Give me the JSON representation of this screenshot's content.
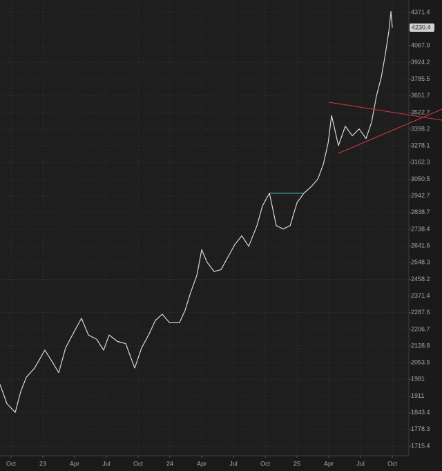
{
  "chart_data": {
    "type": "line",
    "color": "#d8d8d8",
    "log_scale": true,
    "grid": true,
    "x": [
      2022.663,
      2022.717,
      2022.783,
      2022.826,
      2022.87,
      2022.935,
      2023.016,
      2023.071,
      2023.125,
      2023.179,
      2023.25,
      2023.304,
      2023.359,
      2023.424,
      2023.478,
      2023.522,
      2023.587,
      2023.652,
      2023.723,
      2023.777,
      2023.832,
      2023.886,
      2023.94,
      2023.995,
      2024.076,
      2024.12,
      2024.158,
      2024.212,
      2024.25,
      2024.293,
      2024.348,
      2024.402,
      2024.457,
      2024.511,
      2024.565,
      2024.62,
      2024.685,
      2024.728,
      2024.783,
      2024.837,
      2024.891,
      2024.946,
      2025.0,
      2025.054,
      2025.109,
      2025.163,
      2025.207,
      2025.245,
      2025.272,
      2025.326,
      2025.38,
      2025.435,
      2025.489,
      2025.543,
      2025.587,
      2025.625,
      2025.663,
      2025.696,
      2025.723,
      2025.739,
      2025.75
    ],
    "values": [
      1960,
      1880,
      1845,
      1930,
      1990,
      2030,
      2110,
      2060,
      2010,
      2120,
      2200,
      2260,
      2180,
      2160,
      2110,
      2180,
      2150,
      2140,
      2030,
      2120,
      2180,
      2250,
      2280,
      2240,
      2240,
      2300,
      2380,
      2480,
      2620,
      2550,
      2500,
      2510,
      2580,
      2650,
      2700,
      2640,
      2760,
      2880,
      2960,
      2760,
      2740,
      2760,
      2900,
      2960,
      3000,
      3050,
      3150,
      3300,
      3500,
      3280,
      3420,
      3350,
      3400,
      3330,
      3450,
      3650,
      3800,
      4000,
      4200,
      4380,
      4230.4
    ],
    "last_value": 4230.4,
    "xlim": [
      2022.663,
      2025.88
    ],
    "ylim": [
      1680,
      4490
    ],
    "xticks": [
      {
        "value": 2022.75,
        "label": "Oct"
      },
      {
        "value": 2023.0,
        "label": "23"
      },
      {
        "value": 2023.25,
        "label": "Apr"
      },
      {
        "value": 2023.5,
        "label": "Jul"
      },
      {
        "value": 2023.75,
        "label": "Oct"
      },
      {
        "value": 2024.0,
        "label": "24"
      },
      {
        "value": 2024.25,
        "label": "Apr"
      },
      {
        "value": 2024.5,
        "label": "Jul"
      },
      {
        "value": 2024.75,
        "label": "Oct"
      },
      {
        "value": 2025.0,
        "label": "25"
      },
      {
        "value": 2025.25,
        "label": "Apr"
      },
      {
        "value": 2025.5,
        "label": "Jul"
      },
      {
        "value": 2025.75,
        "label": "Oct"
      }
    ],
    "yticks": [
      4371.4,
      4067.9,
      3924.2,
      3785.5,
      3651.7,
      3522.7,
      3398.2,
      3278.1,
      3162.3,
      3050.5,
      2942.7,
      2838.7,
      2738.4,
      2641.6,
      2548.3,
      2458.2,
      2371.4,
      2287.6,
      2206.7,
      2128.8,
      2053.5,
      1981,
      1911,
      1843.4,
      1778.3,
      1715.4
    ],
    "trendlines": [
      {
        "color": "#4fc3c7",
        "x": [
          2024.783,
          2025.054
        ],
        "values": [
          2960,
          2960
        ]
      },
      {
        "color": "#e0343c",
        "x": [
          2025.25,
          2026.141
        ],
        "values": [
          3602,
          3465
        ]
      },
      {
        "color": "#e0343c",
        "x": [
          2025.321,
          2026.141
        ],
        "values": [
          3224,
          3548
        ]
      }
    ]
  }
}
